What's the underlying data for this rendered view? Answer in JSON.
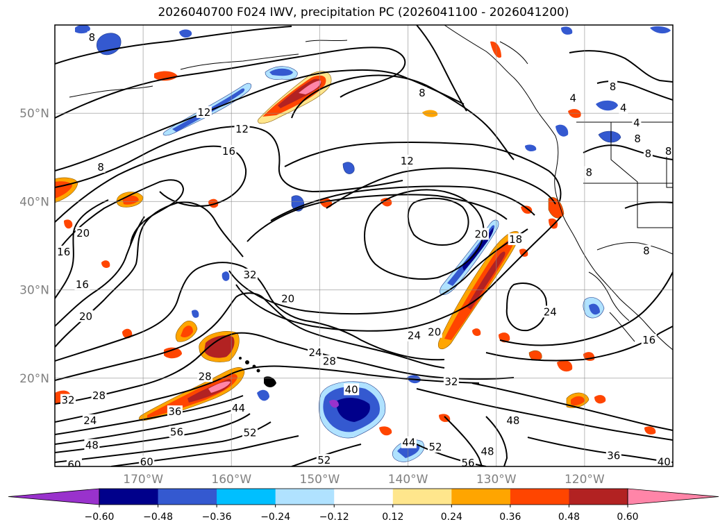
{
  "title": "2026040700 F024 IWV, precipitation PC (2026041100 - 2026041200)",
  "map": {
    "lon_range": [
      -180,
      -110
    ],
    "lat_range": [
      10,
      60
    ],
    "lat_gridlines": [
      50,
      40,
      30,
      20
    ],
    "lon_gridlines": [
      -170,
      -160,
      -150,
      -140,
      -130,
      -120
    ],
    "lat_labels": [
      {
        "lat": 50,
        "text": "50°N"
      },
      {
        "lat": 40,
        "text": "40°N"
      },
      {
        "lat": 30,
        "text": "30°N"
      },
      {
        "lat": 20,
        "text": "20°N"
      }
    ],
    "lon_labels": [
      {
        "lon": -170,
        "text": "170°W"
      },
      {
        "lon": -160,
        "text": "160°W"
      },
      {
        "lon": -150,
        "text": "150°W"
      },
      {
        "lon": -140,
        "text": "140°W"
      },
      {
        "lon": -130,
        "text": "130°W"
      },
      {
        "lon": -120,
        "text": "120°W"
      }
    ],
    "contour_labels": [
      {
        "text": "8",
        "lon": -175.8,
        "lat": 58.6
      },
      {
        "text": "8",
        "lon": -174.8,
        "lat": 43.9
      },
      {
        "text": "12",
        "lon": -163.1,
        "lat": 50.1
      },
      {
        "text": "12",
        "lon": -158.8,
        "lat": 48.2
      },
      {
        "text": "16",
        "lon": -160.3,
        "lat": 45.7
      },
      {
        "text": "12",
        "lon": -140.1,
        "lat": 44.6
      },
      {
        "text": "8",
        "lon": -138.4,
        "lat": 52.3
      },
      {
        "text": "20",
        "lon": -176.8,
        "lat": 36.4
      },
      {
        "text": "16",
        "lon": -179.0,
        "lat": 34.3
      },
      {
        "text": "16",
        "lon": -176.9,
        "lat": 30.6
      },
      {
        "text": "20",
        "lon": -176.5,
        "lat": 27.0
      },
      {
        "text": "32",
        "lon": -157.9,
        "lat": 31.7
      },
      {
        "text": "20",
        "lon": -153.6,
        "lat": 29.0
      },
      {
        "text": "20",
        "lon": -137.0,
        "lat": 25.2
      },
      {
        "text": "24",
        "lon": -139.3,
        "lat": 24.8
      },
      {
        "text": "24",
        "lon": -150.5,
        "lat": 22.9
      },
      {
        "text": "28",
        "lon": -148.9,
        "lat": 21.9
      },
      {
        "text": "28",
        "lon": -163.0,
        "lat": 20.2
      },
      {
        "text": "28",
        "lon": -175.0,
        "lat": 18.0
      },
      {
        "text": "32",
        "lon": -178.5,
        "lat": 17.5
      },
      {
        "text": "32",
        "lon": -135.1,
        "lat": 19.6
      },
      {
        "text": "40",
        "lon": -146.4,
        "lat": 18.7
      },
      {
        "text": "44",
        "lon": -159.2,
        "lat": 16.6
      },
      {
        "text": "36",
        "lon": -166.4,
        "lat": 16.2
      },
      {
        "text": "24",
        "lon": -176.0,
        "lat": 15.2
      },
      {
        "text": "48",
        "lon": -175.8,
        "lat": 12.4
      },
      {
        "text": "56",
        "lon": -166.2,
        "lat": 13.9
      },
      {
        "text": "52",
        "lon": -157.9,
        "lat": 13.8
      },
      {
        "text": "60",
        "lon": -177.8,
        "lat": 10.2
      },
      {
        "text": "60",
        "lon": -169.6,
        "lat": 10.5
      },
      {
        "text": "52",
        "lon": -149.5,
        "lat": 10.7
      },
      {
        "text": "44",
        "lon": -139.9,
        "lat": 12.7
      },
      {
        "text": "52",
        "lon": -136.9,
        "lat": 12.2
      },
      {
        "text": "56",
        "lon": -133.2,
        "lat": 10.4
      },
      {
        "text": "48",
        "lon": -131.0,
        "lat": 11.7
      },
      {
        "text": "48",
        "lon": -128.1,
        "lat": 15.2
      },
      {
        "text": "36",
        "lon": -116.7,
        "lat": 11.2
      },
      {
        "text": "40",
        "lon": -111.0,
        "lat": 10.5
      },
      {
        "text": "24",
        "lon": -123.9,
        "lat": 27.5
      },
      {
        "text": "16",
        "lon": -112.7,
        "lat": 24.3
      },
      {
        "text": "20",
        "lon": -131.7,
        "lat": 36.3
      },
      {
        "text": "18",
        "lon": -127.8,
        "lat": 35.7
      },
      {
        "text": "4",
        "lon": -121.3,
        "lat": 51.7
      },
      {
        "text": "8",
        "lon": -116.8,
        "lat": 53.0
      },
      {
        "text": "4",
        "lon": -115.6,
        "lat": 50.6
      },
      {
        "text": "8",
        "lon": -114.0,
        "lat": 47.1
      },
      {
        "text": "8",
        "lon": -110.5,
        "lat": 45.7
      },
      {
        "text": "8",
        "lon": -112.8,
        "lat": 45.4
      },
      {
        "text": "8",
        "lon": -119.5,
        "lat": 43.3
      },
      {
        "text": "4",
        "lon": -114.1,
        "lat": 48.9
      },
      {
        "text": "8",
        "lon": -113.0,
        "lat": 34.4
      }
    ]
  },
  "colorbar": {
    "ticks": [
      "−0.60",
      "−0.48",
      "−0.36",
      "−0.24",
      "−0.12",
      "0.12",
      "0.24",
      "0.36",
      "0.48",
      "0.60"
    ],
    "levels": [
      -0.72,
      -0.6,
      -0.48,
      -0.36,
      -0.24,
      -0.12,
      0.12,
      0.24,
      0.36,
      0.48,
      0.6,
      0.72
    ],
    "colors": {
      "below": "#9932cc",
      "bins": [
        "#00008b",
        "#3459d0",
        "#00bfff",
        "#b0e2ff",
        "#ffffff",
        "#ffe68c",
        "#ffa500",
        "#ff4500",
        "#b22222"
      ],
      "above": "#ff85a8"
    }
  }
}
